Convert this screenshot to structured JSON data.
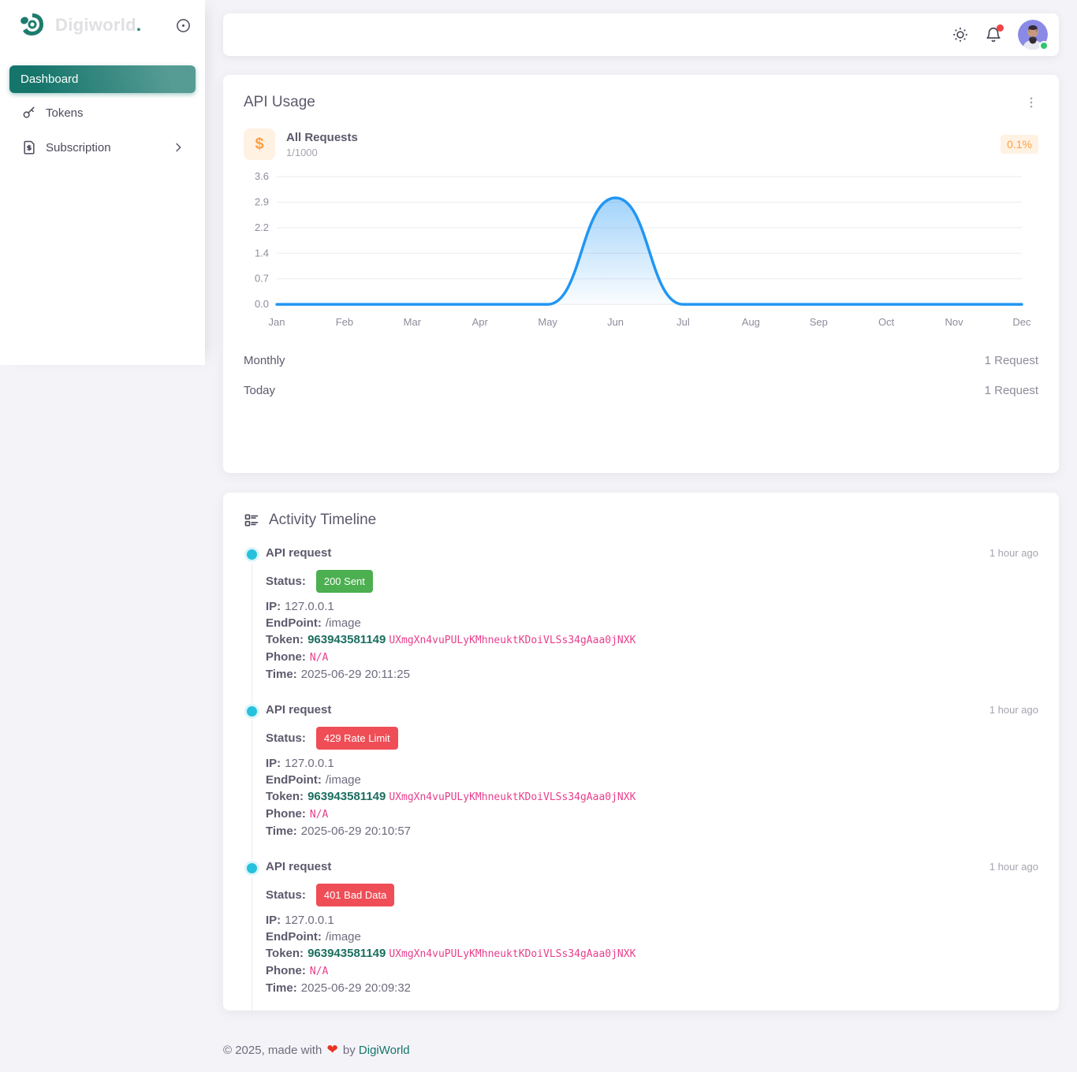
{
  "sidebar": {
    "brand": {
      "name": "Digiworld",
      "dot": "."
    },
    "items": [
      {
        "label": "Dashboard"
      },
      {
        "label": "Tokens"
      },
      {
        "label": "Subscription"
      }
    ]
  },
  "api_usage": {
    "title": "API Usage",
    "metric": {
      "icon_char": "$",
      "label": "All Requests",
      "sub": "1/1000",
      "badge": "0.1%"
    },
    "stats": [
      {
        "label": "Monthly",
        "value": "1 Request"
      },
      {
        "label": "Today",
        "value": "1 Request"
      }
    ]
  },
  "chart_data": {
    "type": "area",
    "title": "API Usage - All Requests",
    "categories": [
      "Jan",
      "Feb",
      "Mar",
      "Apr",
      "May",
      "Jun",
      "Jul",
      "Aug",
      "Sep",
      "Oct",
      "Nov",
      "Dec"
    ],
    "values": [
      0,
      0,
      0,
      0,
      0,
      3,
      0,
      0,
      0,
      0,
      0,
      0
    ],
    "xlabel": "",
    "ylabel": "",
    "ylim": [
      0,
      3.6
    ],
    "y_tick_values": [
      0,
      0.72,
      1.44,
      2.16,
      2.88,
      3.6
    ],
    "y_tick_labels": [
      "0.0",
      "0.7",
      "1.4",
      "2.2",
      "2.9",
      "3.6"
    ],
    "grid": true,
    "legend": "none",
    "line_color": "#2196f3",
    "curve": "smooth"
  },
  "timeline": {
    "title": "Activity Timeline",
    "field_labels": {
      "status": "Status:",
      "ip": "IP:",
      "endpoint": "EndPoint:",
      "token": "Token:",
      "phone": "Phone:",
      "time": "Time:"
    },
    "items": [
      {
        "title": "API request",
        "ago": "1 hour ago",
        "status": {
          "label": "200 Sent",
          "color": "#4caf50"
        },
        "ip": "127.0.0.1",
        "endpoint": "/image",
        "token_id": "963943581149",
        "token_secret": "UXmgXn4vuPULyKMhneuktKDoiVLSs34gAaa0jNXK",
        "phone": "N/A",
        "time": "2025-06-29 20:11:25"
      },
      {
        "title": "API request",
        "ago": "1 hour ago",
        "status": {
          "label": "429 Rate Limit",
          "color": "#ef4e57"
        },
        "ip": "127.0.0.1",
        "endpoint": "/image",
        "token_id": "963943581149",
        "token_secret": "UXmgXn4vuPULyKMhneuktKDoiVLSs34gAaa0jNXK",
        "phone": "N/A",
        "time": "2025-06-29 20:10:57"
      },
      {
        "title": "API request",
        "ago": "1 hour ago",
        "status": {
          "label": "401 Bad Data",
          "color": "#ef4e57"
        },
        "ip": "127.0.0.1",
        "endpoint": "/image",
        "token_id": "963943581149",
        "token_secret": "UXmgXn4vuPULyKMhneuktKDoiVLSs34gAaa0jNXK",
        "phone": "N/A",
        "time": "2025-06-29 20:09:32"
      }
    ]
  },
  "footer": {
    "prefix": "© 2025, made with",
    "heart": "❤",
    "middle": "by",
    "link": "DigiWorld"
  }
}
